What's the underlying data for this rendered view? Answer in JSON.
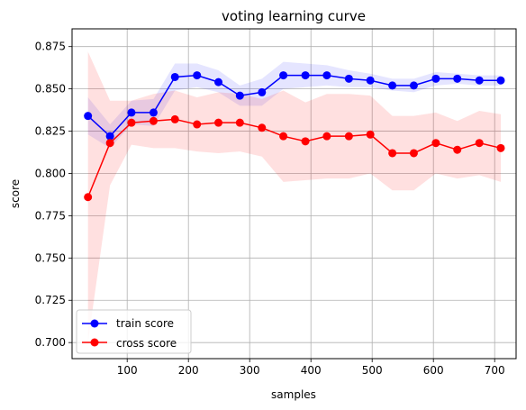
{
  "chart_data": {
    "type": "line",
    "title": "voting learning curve",
    "xlabel": "samples",
    "ylabel": "score",
    "xlim": [
      10,
      735
    ],
    "ylim": [
      0.6905,
      0.8855
    ],
    "xticks": [
      100,
      200,
      300,
      400,
      500,
      600,
      700
    ],
    "yticks": [
      0.7,
      0.725,
      0.75,
      0.775,
      0.8,
      0.825,
      0.85,
      0.875
    ],
    "ytick_labels": [
      "0.700",
      "0.725",
      "0.750",
      "0.775",
      "0.800",
      "0.825",
      "0.850",
      "0.875"
    ],
    "grid": true,
    "legend_position": "lower-left",
    "x": [
      36,
      72,
      107,
      143,
      178,
      214,
      249,
      284,
      320,
      355,
      391,
      426,
      462,
      497,
      533,
      568,
      604,
      639,
      675,
      710
    ],
    "series": [
      {
        "name": "train score",
        "color": "#0000ff",
        "band_color": "#0000ff",
        "values": [
          0.834,
          0.822,
          0.836,
          0.836,
          0.857,
          0.858,
          0.854,
          0.846,
          0.848,
          0.858,
          0.858,
          0.858,
          0.856,
          0.855,
          0.852,
          0.852,
          0.856,
          0.856,
          0.855,
          0.855
        ],
        "lower": [
          0.823,
          0.815,
          0.829,
          0.828,
          0.849,
          0.851,
          0.848,
          0.84,
          0.84,
          0.85,
          0.851,
          0.852,
          0.851,
          0.851,
          0.849,
          0.848,
          0.852,
          0.853,
          0.852,
          0.852
        ],
        "upper": [
          0.845,
          0.829,
          0.843,
          0.844,
          0.865,
          0.865,
          0.861,
          0.852,
          0.856,
          0.866,
          0.865,
          0.864,
          0.861,
          0.859,
          0.856,
          0.856,
          0.86,
          0.859,
          0.858,
          0.858
        ]
      },
      {
        "name": "cross score",
        "color": "#ff0000",
        "band_color": "#ff0000",
        "values": [
          0.786,
          0.818,
          0.83,
          0.831,
          0.832,
          0.829,
          0.83,
          0.83,
          0.827,
          0.822,
          0.819,
          0.822,
          0.822,
          0.823,
          0.812,
          0.812,
          0.818,
          0.814,
          0.818,
          0.815
        ],
        "lower": [
          0.7,
          0.793,
          0.817,
          0.815,
          0.815,
          0.813,
          0.812,
          0.813,
          0.81,
          0.795,
          0.796,
          0.797,
          0.797,
          0.8,
          0.79,
          0.79,
          0.8,
          0.797,
          0.799,
          0.795
        ],
        "upper": [
          0.872,
          0.843,
          0.843,
          0.847,
          0.849,
          0.845,
          0.848,
          0.847,
          0.844,
          0.849,
          0.842,
          0.847,
          0.847,
          0.846,
          0.834,
          0.834,
          0.836,
          0.831,
          0.837,
          0.835
        ]
      }
    ]
  }
}
